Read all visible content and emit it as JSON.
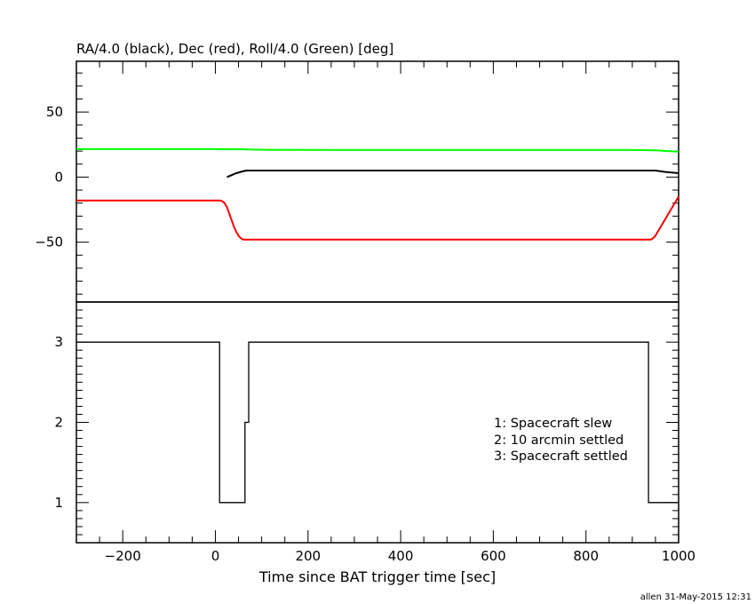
{
  "chart_data": [
    {
      "type": "line",
      "title": "RA/4.0 (black), Dec (red), Roll/4.0 (Green) [deg]",
      "xlim": [
        -300,
        1000
      ],
      "ylim": [
        -96,
        89
      ],
      "yticks_major": [
        -50,
        0,
        50
      ],
      "ytick_labels": [
        "−50",
        "0",
        "50"
      ],
      "grid": false,
      "series": [
        {
          "name": "RA/4.0",
          "color": "#000000",
          "x": [
            25,
            35,
            45,
            55,
            62,
            68,
            75,
            100,
            200,
            300,
            400,
            500,
            600,
            700,
            800,
            900,
            950,
            970,
            1000
          ],
          "y": [
            0,
            1.5,
            3.0,
            4.0,
            4.7,
            5.0,
            5.0,
            5.0,
            5.0,
            5.0,
            5.0,
            5.0,
            5.0,
            5.0,
            5.0,
            5.0,
            5.0,
            4.0,
            3.0
          ]
        },
        {
          "name": "Dec",
          "color": "#ff0000",
          "x": [
            -300,
            -200,
            -100,
            0,
            10,
            15,
            20,
            25,
            30,
            35,
            40,
            45,
            50,
            55,
            60,
            65,
            70,
            80,
            200,
            400,
            600,
            800,
            900,
            940,
            945,
            950,
            955,
            960,
            965,
            970,
            975,
            980,
            985,
            990,
            995,
            1000
          ],
          "y": [
            -18,
            -18,
            -18,
            -18,
            -18,
            -18.5,
            -20,
            -23,
            -28,
            -33,
            -38,
            -42,
            -45,
            -47,
            -48,
            -48,
            -48,
            -48,
            -48,
            -48,
            -48,
            -48,
            -48,
            -48,
            -47,
            -45,
            -42,
            -39,
            -36,
            -33,
            -30,
            -27,
            -24,
            -21,
            -18,
            -15
          ]
        },
        {
          "name": "Roll/4.0",
          "color": "#00ff00",
          "x": [
            -300,
            0,
            50,
            100,
            300,
            500,
            700,
            900,
            950,
            1000
          ],
          "y": [
            21.5,
            21.5,
            21.4,
            21.0,
            20.8,
            20.8,
            20.8,
            20.8,
            20.5,
            19.5
          ]
        }
      ]
    },
    {
      "type": "line",
      "step": true,
      "xlabel": "Time since BAT trigger time [sec]",
      "xlim": [
        -300,
        1000
      ],
      "ylim": [
        0.5,
        3.5
      ],
      "xticks_major": [
        -200,
        0,
        200,
        400,
        600,
        800,
        1000
      ],
      "xtick_labels": [
        "−200",
        "0",
        "200",
        "400",
        "600",
        "800",
        "1000"
      ],
      "yticks_major": [
        1,
        2,
        3
      ],
      "ytick_labels": [
        "1",
        "2",
        "3"
      ],
      "grid": false,
      "series": [
        {
          "color": "#000000",
          "x": [
            -300,
            9,
            9,
            64,
            64,
            72,
            72,
            935,
            935,
            1000
          ],
          "y": [
            3,
            3,
            1,
            1,
            2,
            2,
            3,
            3,
            1,
            1
          ]
        }
      ],
      "legend_lines": [
        "1: Spacecraft slew",
        "2: 10 arcmin settled",
        "3: Spacecraft settled"
      ]
    }
  ],
  "footer": "allen 31-May-2015 12:31"
}
